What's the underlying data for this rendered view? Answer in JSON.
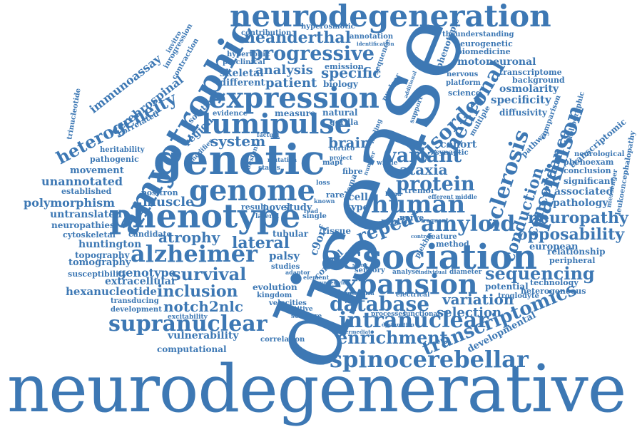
{
  "cloud": {
    "color": "#3d78b4",
    "words": {
      "neurodegenerative": "neurodegenerative",
      "disease": "disease",
      "neurodegeneration": "neurodegeneration",
      "genetic": "genetic",
      "amyotrophic": "amyotrophic",
      "phenotype": "phenotype",
      "association": "association",
      "expression": "expression",
      "genome": "genome",
      "lumipulse": "lumipulse",
      "expansion": "expansion",
      "human": "human",
      "intranuclear": "intranuclear",
      "supranuclear": "supranuclear",
      "spinocerebellar": "spinocerebellar",
      "alzheimer": "alzheimer",
      "amyloid": "amyloid",
      "progressive": "progressive",
      "neanderthal": "neanderthal",
      "parkinson": "parkinson",
      "sclerosis": "sclerosis",
      "neuronal": "neuronal",
      "disorder": "disorder",
      "protein": "protein",
      "variant": "variant",
      "ataxia": "ataxia",
      "repeat": "repeat",
      "lateral": "lateral",
      "survival": "survival",
      "inclusion": "inclusion",
      "notch2nlc": "notch2nlc",
      "database": "database",
      "enrichment": "enrichment",
      "transcriptomics": "transcriptomics",
      "sequencing": "sequencing",
      "variation": "variation",
      "selection": "selection",
      "neuropathy": "neuropathy",
      "opposability": "opposability",
      "concordance": "concordance",
      "conduction": "conduction",
      "heterogeneity": "heterogeneity",
      "immunoassay": "immunoassay",
      "cerebrospinal": "cerebrospinal",
      "analysis": "analysis",
      "specific": "specific",
      "patient": "patient",
      "system": "system",
      "brain": "brain",
      "muscle": "muscle",
      "atrophy": "atrophy",
      "genotype": "genotype",
      "polymorphism": "polymorphism",
      "unannotated": "unannotated",
      "untranslated": "untranslated",
      "neuropathies": "neuropathies",
      "cytoskeletal": "cytoskeletal",
      "huntington": "huntington",
      "topography": "topography",
      "tomography": "tomography",
      "susceptibility": "susceptibility",
      "hexanucleotide": "hexanucleotide",
      "extracellular": "extracellular",
      "transducing": "transducing",
      "development": "development",
      "vulnerability": "vulnerability",
      "computational": "computational",
      "correlation": "correlation",
      "developmental": "developmental",
      "relationship": "relationship",
      "peripheral": "peripheral",
      "pathology": "pathology",
      "associated": "associated",
      "significant": "significant",
      "conclusion": "conclusion",
      "neurological": "neurological",
      "transcriptomic": "transcriptomic",
      "comparison": "comparison",
      "diffusivity": "diffusivity",
      "specificity": "specificity",
      "osmolarity": "osmolarity",
      "background": "background",
      "transcriptome": "transcriptome",
      "motoneuronal": "motoneuronal",
      "biomedicine": "biomedicine",
      "neurogenetic": "neurogenetic",
      "theunderstanding": "theunderstanding",
      "phenotypic": "phenotypic",
      "cohort": "cohort",
      "science": "science",
      "nervous": "nervous",
      "platform": "platform",
      "biology": "biology",
      "different": "different",
      "skeletal": "skeletal",
      "hypertonic": "hypertonic",
      "preclinical": "preclinical",
      "contribution": "contribution",
      "hyperosmotic": "hyperosmotic",
      "annotation": "annotation",
      "identification": "identification",
      "emission": "emission",
      "sequence": "sequence",
      "natural": "natural",
      "measure": "measure",
      "evidence": "evidence",
      "gorilla": "gorilla",
      "region": "region",
      "solution": "solution",
      "contraction": "contraction",
      "invitro": "invitro",
      "inrogression": "inrogression",
      "trinucleotide": "trinucleotide",
      "correlated": "correlated",
      "heritability": "heritability",
      "pathogenic": "pathogenic",
      "movement": "movement",
      "established": "established",
      "positron": "positron",
      "candidate": "candidate",
      "lateral_small": "lateral",
      "novel": "novel",
      "study": "study",
      "result": "result",
      "tubular": "tubular",
      "palsy": "palsy",
      "studies": "studies",
      "cortical": "cortical",
      "c9orf": "c9orf",
      "tissue": "tissue",
      "motor": "motor",
      "cell": "cell",
      "type": "type",
      "rare": "rare",
      "single": "single",
      "nerve": "nerve",
      "tremor": "tremor",
      "feature": "feature",
      "method": "method",
      "plekhg": "plekhg",
      "sensory": "sensory",
      "analyse": "analyse",
      "diameter": "diameter",
      "individual": "individual",
      "potential": "potential",
      "technology": "technology",
      "heterogeneous": "heterogeneous",
      "troglodyte": "troglodyte",
      "european": "european",
      "phenoexam": "phenoexam",
      "leukoencephalopathy": "leukoencephalopathy",
      "messenger": "messenger",
      "bibliographic": "bibliographic",
      "evolution": "evolution",
      "kingdom": "kingdom",
      "velocities": "velocities",
      "repetitive": "repetitive",
      "software": "software",
      "excitability": "excitability",
      "electrical": "electrical",
      "processes": "processes",
      "functional": "functional",
      "adaptor": "adaptor",
      "element": "element",
      "pathway": "pathway",
      "synaptic": "synaptic",
      "multiple": "multiple",
      "fibre": "fibre",
      "whole": "whole",
      "finding": "finding",
      "support": "support",
      "nuclear": "nuclear",
      "cortico": "cortico",
      "project": "project",
      "status": "status",
      "factual": "factual",
      "constant": "constant",
      "modifier": "modifier",
      "frequent": "frequent",
      "hand": "hand",
      "efferent": "efferent",
      "middle": "middle",
      "known": "known",
      "read": "read",
      "shiny": "shiny",
      "control": "control",
      "loss": "loss",
      "number": "number",
      "mapt": "mapt",
      "edema": "edema",
      "additional": "additional",
      "intermediate": "intermediate",
      "dysfunction": "dysfunction",
      "duplication": "duplication",
      "underlying": "underlying",
      "mutation": "mutation"
    }
  }
}
